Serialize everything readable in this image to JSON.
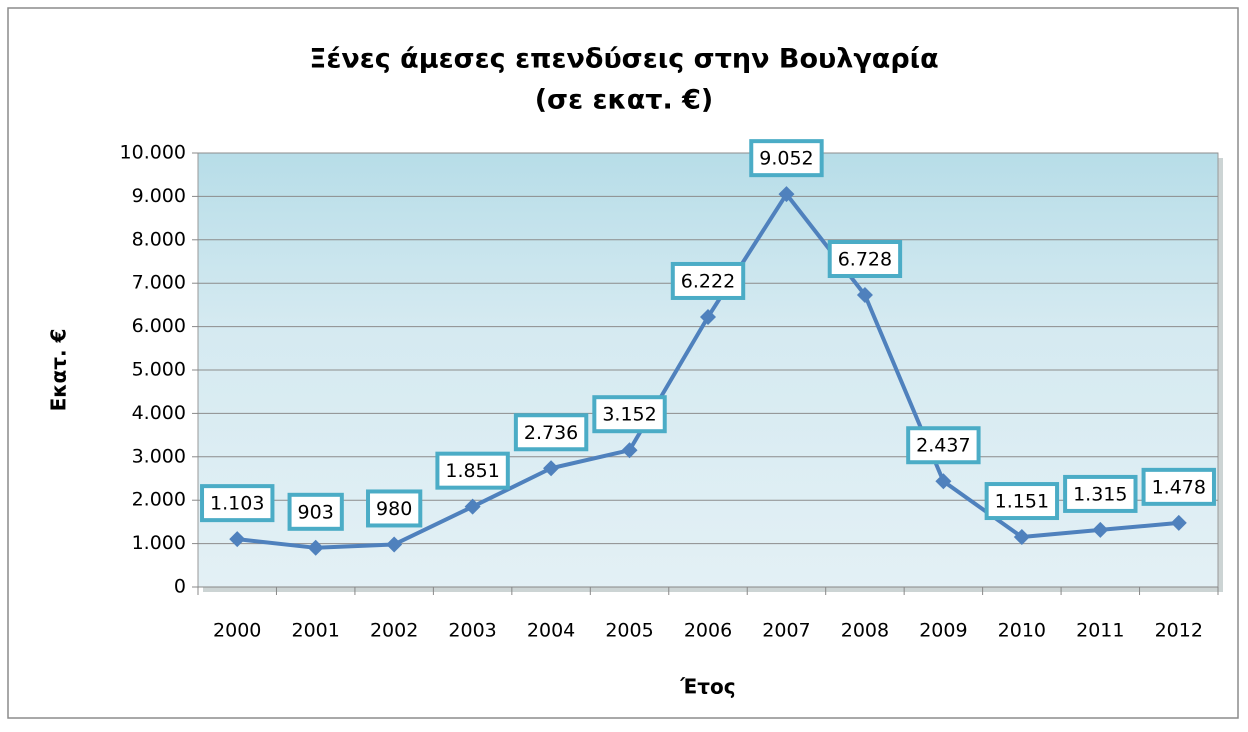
{
  "chart_data": {
    "type": "line",
    "title": "Ξένες άμεσες επενδύσεις στην Βουλγαρία",
    "subtitle": "(σε εκατ. €)",
    "x_label": "Έτος",
    "y_label": "Εκατ. €",
    "categories": [
      "2000",
      "2001",
      "2002",
      "2003",
      "2004",
      "2005",
      "2006",
      "2007",
      "2008",
      "2009",
      "2010",
      "2011",
      "2012"
    ],
    "values": [
      1103,
      903,
      980,
      1851,
      2736,
      3152,
      6222,
      9052,
      6728,
      2437,
      1151,
      1315,
      1478
    ],
    "value_labels": [
      "1.103",
      "903",
      "980",
      "1.851",
      "2.736",
      "3.152",
      "6.222",
      "9.052",
      "6.728",
      "2.437",
      "1.151",
      "1.315",
      "1.478"
    ],
    "color": "#4f81bd",
    "ylim": [
      0,
      10000
    ],
    "yticks": [
      0,
      {
        "value": 1000,
        "label": "1.000"
      },
      {
        "value": 2000,
        "label": "2.000"
      },
      {
        "value": 3000,
        "label": "3.000"
      },
      {
        "value": 4000,
        "label": "4.000"
      },
      {
        "value": 5000,
        "label": "5.000"
      },
      {
        "value": 6000,
        "label": "6.000"
      },
      {
        "value": 7000,
        "label": "7.000"
      },
      {
        "value": 8000,
        "label": "8.000"
      },
      {
        "value": 9000,
        "label": "9.000"
      },
      {
        "value": 10000,
        "label": "10.000"
      }
    ],
    "grid": true
  }
}
